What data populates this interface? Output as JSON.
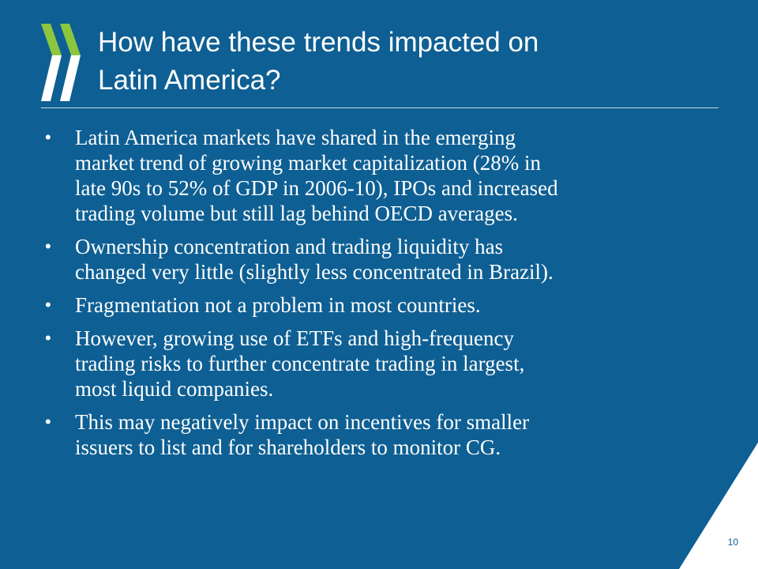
{
  "slide": {
    "title_lines": [
      "How have these trends impacted on",
      "Latin America?"
    ],
    "bullets": [
      {
        "lines": [
          "Latin America markets have shared in the emerging",
          "market trend of growing market capitalization (28% in",
          "late 90s to 52% of GDP in 2006-10), IPOs and increased",
          "trading volume but still lag behind OECD averages."
        ]
      },
      {
        "lines": [
          "Ownership concentration and trading liquidity has",
          "changed very little (slightly less concentrated in Brazil)."
        ]
      },
      {
        "lines": [
          "Fragmentation not a problem in most countries."
        ]
      },
      {
        "lines": [
          "However, growing use of ETFs and high-frequency",
          "trading risks to further concentrate trading in largest,",
          "most liquid companies."
        ]
      },
      {
        "lines": [
          "This may negatively impact on incentives for smaller",
          "issuers to list and for shareholders to monitor CG."
        ]
      }
    ],
    "bullet_symbol": "•",
    "page_number": "10",
    "colors": {
      "background": "#0e5f93",
      "logo_green": "#8cc63f",
      "logo_white": "#ffffff",
      "text": "#ffffff"
    },
    "icons": {
      "logo": "oecd-chevron-logo",
      "corner": "white-triangle-corner"
    }
  }
}
